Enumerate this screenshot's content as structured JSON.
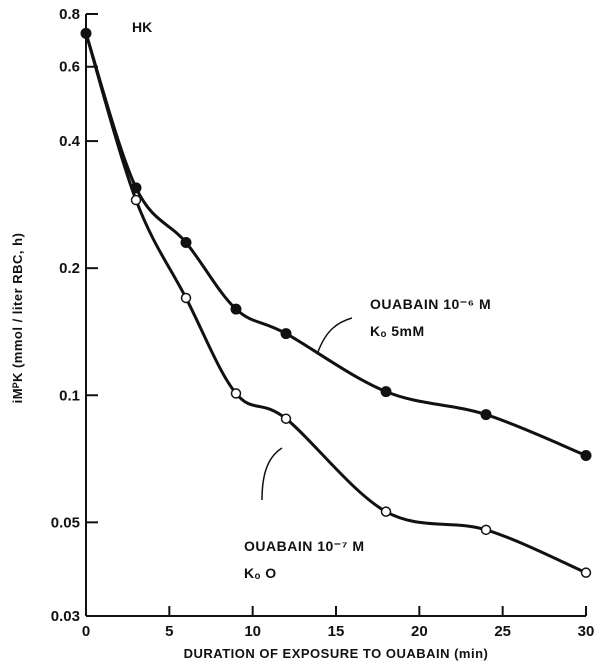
{
  "chart_data": {
    "type": "scatter",
    "panel_label": "HK",
    "ylabel": "iMᴾK (mmol / liter RBC, h)",
    "xlabel": "DURATION OF EXPOSURE TO OUABAIN (min)",
    "xlim": [
      0,
      30
    ],
    "ylim": [
      0.03,
      0.8
    ],
    "y_scale": "log",
    "x_ticks": [
      "0",
      "5",
      "10",
      "15",
      "20",
      "25",
      "30"
    ],
    "y_ticks": [
      "0.03",
      "0.05",
      "0.1",
      "0.2",
      "0.4",
      "0.6",
      "0.8"
    ],
    "grid": false,
    "series": [
      {
        "marker": "filled-circle",
        "annotation_lines": [
          "OUABAIN 10⁻⁶ M",
          "Kₒ 5mM"
        ],
        "x": [
          0,
          3,
          6,
          9,
          12,
          18,
          24,
          30
        ],
        "y": [
          0.72,
          0.31,
          0.23,
          0.16,
          0.14,
          0.102,
          0.09,
          0.072
        ]
      },
      {
        "marker": "open-circle",
        "annotation_lines": [
          "OUABAIN 10⁻⁷ M",
          "Kₒ O"
        ],
        "x": [
          3,
          6,
          9,
          12,
          18,
          24,
          30
        ],
        "y": [
          0.29,
          0.17,
          0.101,
          0.088,
          0.053,
          0.048,
          0.038
        ]
      }
    ]
  }
}
